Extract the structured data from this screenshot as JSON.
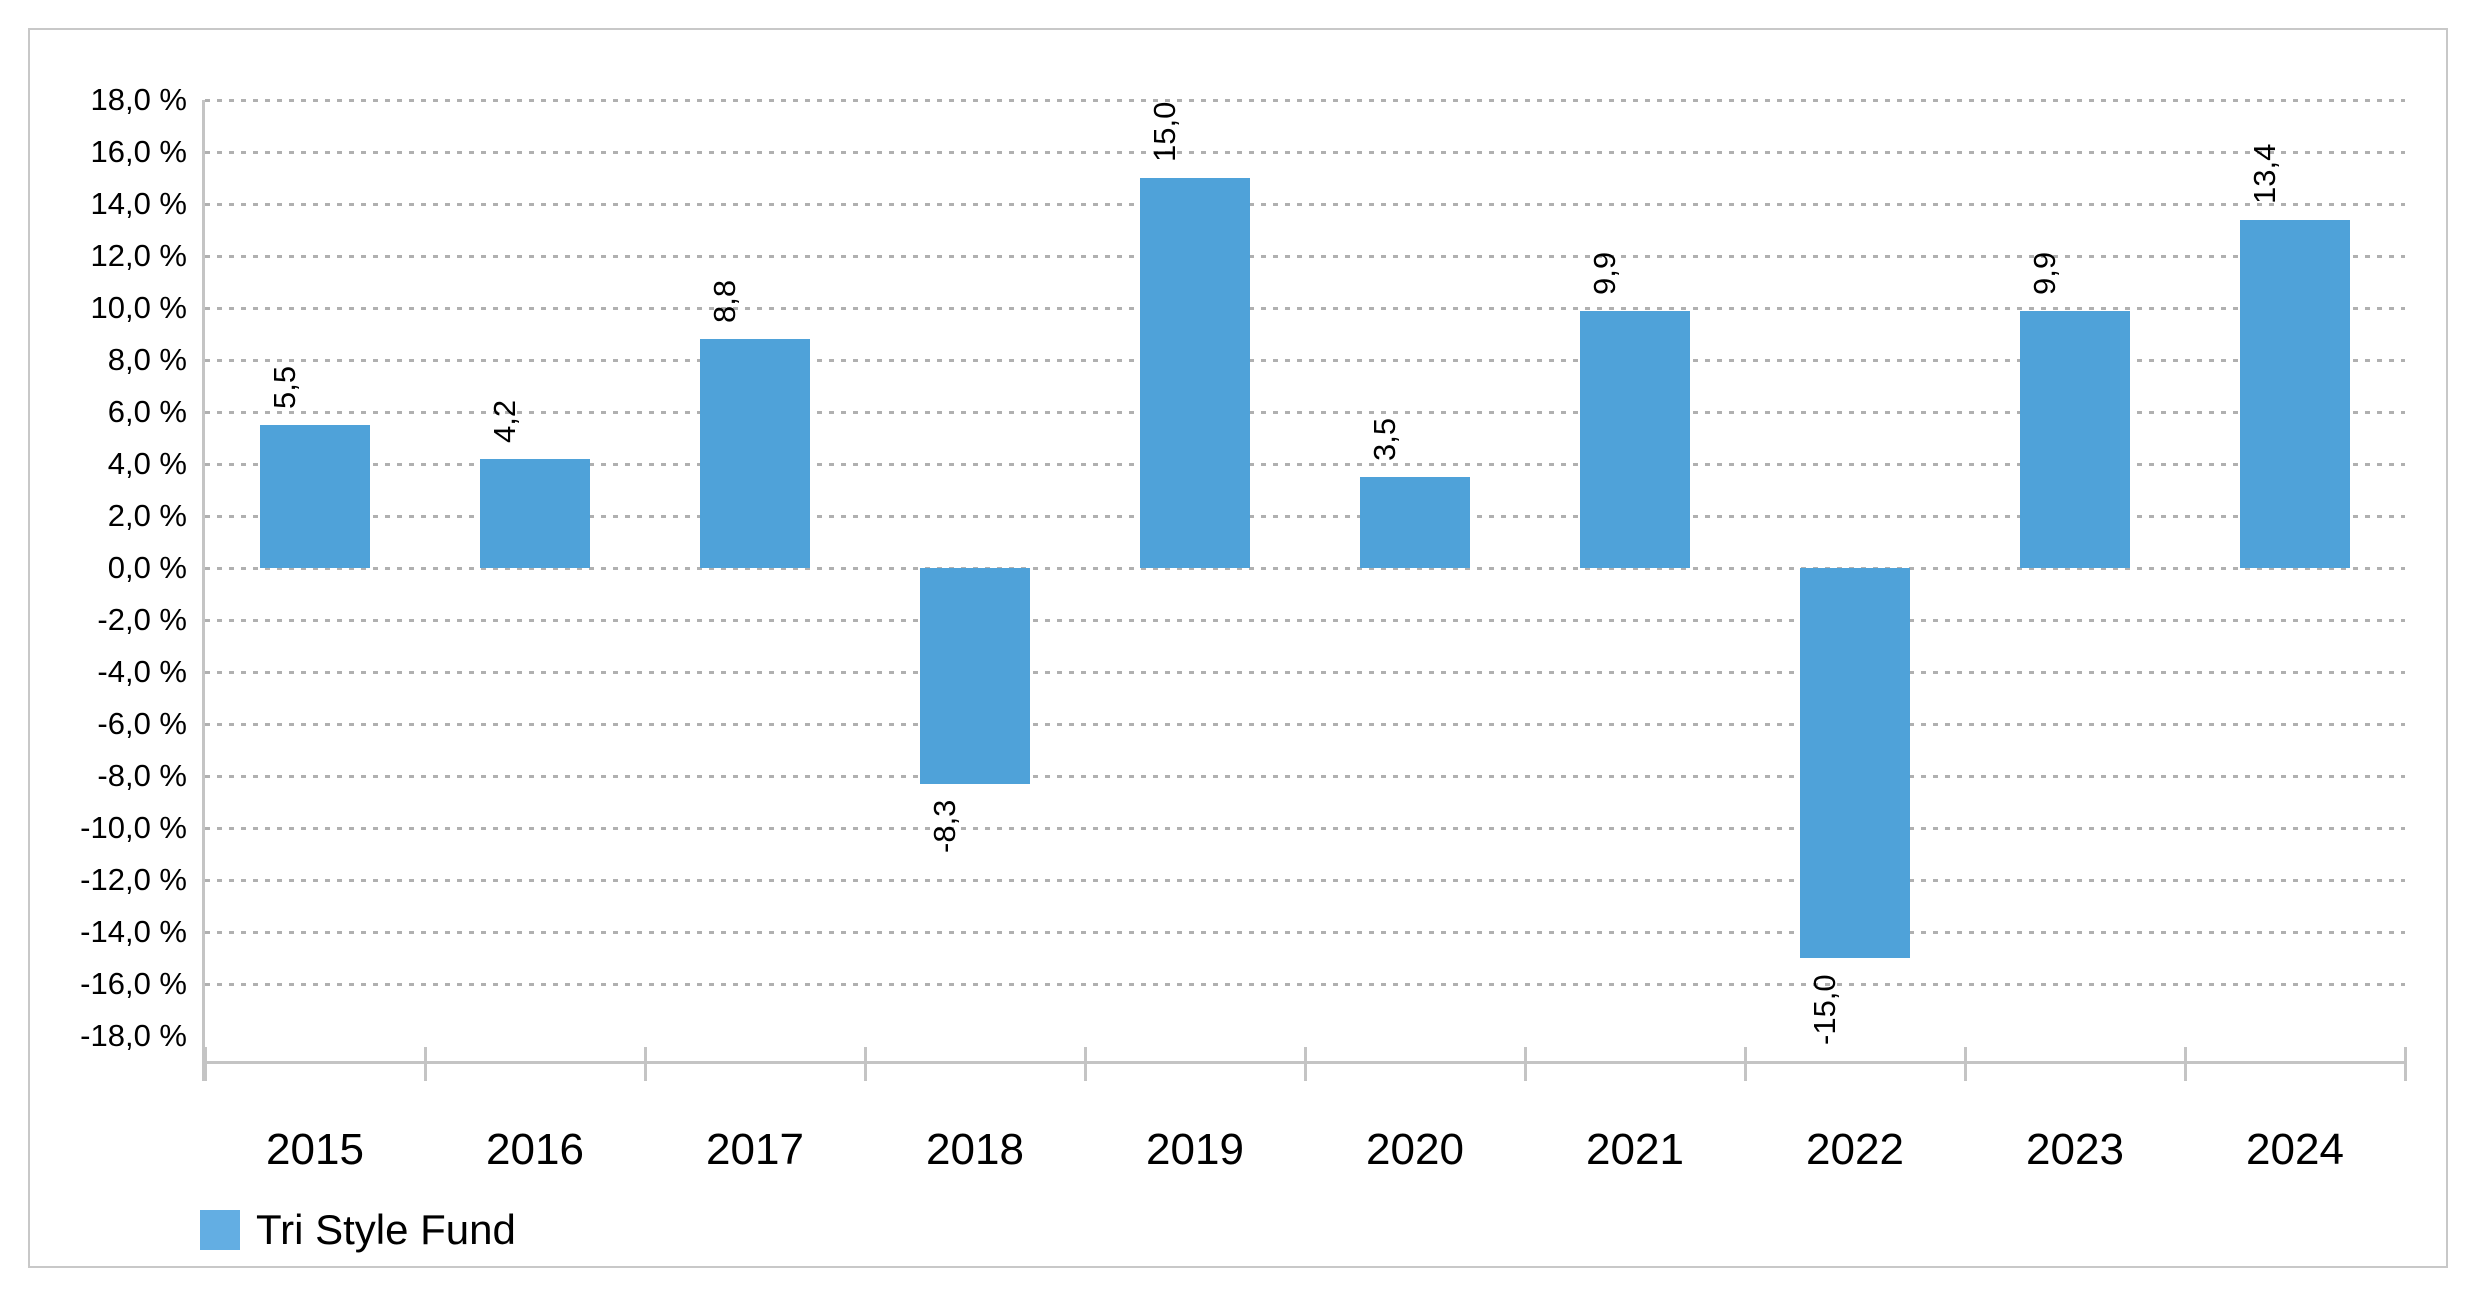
{
  "legend": {
    "label": "Tri Style Fund"
  },
  "colors": {
    "bar": "#4fa2d9",
    "legend_swatch": "#63aee3",
    "axis": "#c4c4c4",
    "gridline": "#b0b0b0",
    "frame_border": "#c8c8c8",
    "text": "#000000",
    "background": "#ffffff"
  },
  "chart_data": {
    "type": "bar",
    "title": "",
    "xlabel": "",
    "ylabel": "",
    "categories": [
      "2015",
      "2016",
      "2017",
      "2018",
      "2019",
      "2020",
      "2021",
      "2022",
      "2023",
      "2024"
    ],
    "series": [
      {
        "name": "Tri Style Fund",
        "values": [
          5.5,
          4.2,
          8.8,
          -8.3,
          15.0,
          3.5,
          9.9,
          -15.0,
          9.9,
          13.4
        ],
        "value_labels": [
          "5,5",
          "4,2",
          "8,8",
          "-8,3",
          "15,0",
          "3,5",
          "9,9",
          "-15,0",
          "9,9",
          "13,4"
        ]
      }
    ],
    "y_axis": {
      "min": -18,
      "max": 18,
      "step": 2,
      "tick_values": [
        18,
        16,
        14,
        12,
        10,
        8,
        6,
        4,
        2,
        0,
        -2,
        -4,
        -6,
        -8,
        -10,
        -12,
        -14,
        -16,
        -18
      ],
      "tick_labels": [
        "18,0 %",
        "16,0 %",
        "14,0 %",
        "12,0 %",
        "10,0 %",
        "8,0 %",
        "6,0 %",
        "4,0 %",
        "2,0 %",
        "0,0 %",
        "-2,0 %",
        "-4,0 %",
        "-6,0 %",
        "-8,0 %",
        "-10,0 %",
        "-12,0 %",
        "-14,0 %",
        "-16,0 %",
        "-18,0 %"
      ]
    },
    "grid": "horizontal dotted, no gridline at -18",
    "value_label_rotation": "90 degrees counterclockwise (reads bottom-to-top)",
    "number_format": "comma decimal separator, space before %",
    "legend_position": "bottom-left"
  }
}
